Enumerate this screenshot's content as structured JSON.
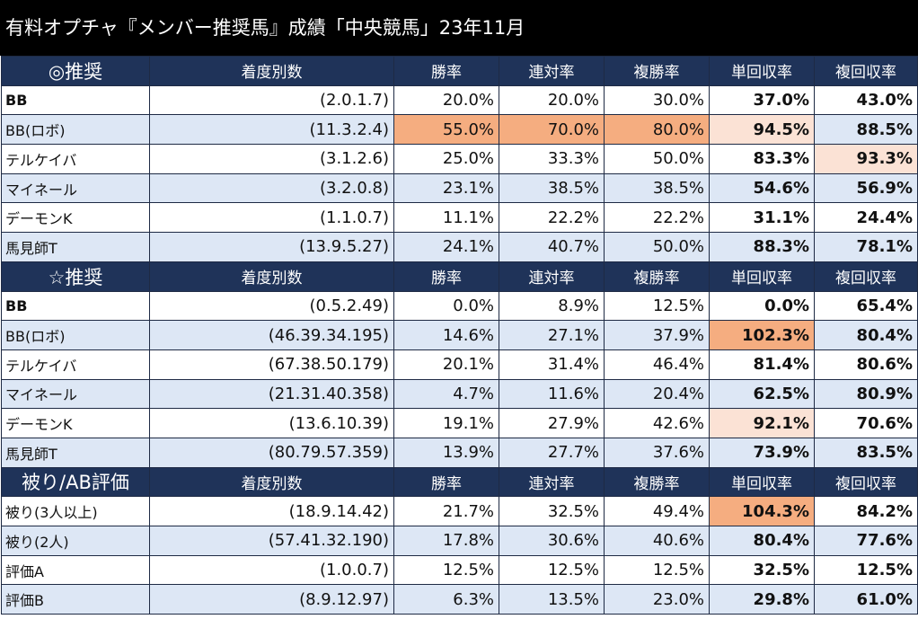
{
  "title": "有料オプチャ『メンバー推奨馬』成績「中央競馬」23年11月",
  "columns": [
    "着度別数",
    "勝率",
    "連対率",
    "複勝率",
    "単回収率",
    "複回収率"
  ],
  "sections": [
    {
      "name": "◎推奨",
      "rows": [
        {
          "label": "BB",
          "cells": [
            "(2.0.1.7)",
            "20.0%",
            "20.0%",
            "30.0%",
            "37.0%",
            "43.0%"
          ]
        },
        {
          "label": "BB(ロボ)",
          "cells": [
            "(11.3.2.4)",
            "55.0%",
            "70.0%",
            "80.0%",
            "94.5%",
            "88.5%"
          ]
        },
        {
          "label": "テルケイバ",
          "cells": [
            "(3.1.2.6)",
            "25.0%",
            "33.3%",
            "50.0%",
            "83.3%",
            "93.3%"
          ]
        },
        {
          "label": "マイネール",
          "cells": [
            "(3.2.0.8)",
            "23.1%",
            "38.5%",
            "38.5%",
            "54.6%",
            "56.9%"
          ]
        },
        {
          "label": "デーモンK",
          "cells": [
            "(1.1.0.7)",
            "11.1%",
            "22.2%",
            "22.2%",
            "31.1%",
            "24.4%"
          ]
        },
        {
          "label": "馬見師T",
          "cells": [
            "(13.9.5.27)",
            "24.1%",
            "40.7%",
            "50.0%",
            "88.3%",
            "78.1%"
          ]
        }
      ]
    },
    {
      "name": "☆推奨",
      "rows": [
        {
          "label": "BB",
          "cells": [
            "(0.5.2.49)",
            "0.0%",
            "8.9%",
            "12.5%",
            "0.0%",
            "65.4%"
          ]
        },
        {
          "label": "BB(ロボ)",
          "cells": [
            "(46.39.34.195)",
            "14.6%",
            "27.1%",
            "37.9%",
            "102.3%",
            "80.4%"
          ]
        },
        {
          "label": "テルケイバ",
          "cells": [
            "(67.38.50.179)",
            "20.1%",
            "31.4%",
            "46.4%",
            "81.4%",
            "80.6%"
          ]
        },
        {
          "label": "マイネール",
          "cells": [
            "(21.31.40.358)",
            "4.7%",
            "11.6%",
            "20.4%",
            "62.5%",
            "80.9%"
          ]
        },
        {
          "label": "デーモンK",
          "cells": [
            "(13.6.10.39)",
            "19.1%",
            "27.9%",
            "42.6%",
            "92.1%",
            "70.6%"
          ]
        },
        {
          "label": "馬見師T",
          "cells": [
            "(80.79.57.359)",
            "13.9%",
            "27.7%",
            "37.6%",
            "73.9%",
            "83.5%"
          ]
        }
      ]
    },
    {
      "name": "被り/AB評価",
      "rows": [
        {
          "label": "被り(3人以上)",
          "cells": [
            "(18.9.14.42)",
            "21.7%",
            "32.5%",
            "49.4%",
            "104.3%",
            "84.2%"
          ]
        },
        {
          "label": "被り(2人)",
          "cells": [
            "(57.41.32.190)",
            "17.8%",
            "30.6%",
            "40.6%",
            "80.4%",
            "77.6%"
          ]
        },
        {
          "label": "評価A",
          "cells": [
            "(1.0.0.7)",
            "12.5%",
            "12.5%",
            "12.5%",
            "32.5%",
            "12.5%"
          ]
        },
        {
          "label": "評価B",
          "cells": [
            "(8.9.12.97)",
            "6.3%",
            "13.5%",
            "23.0%",
            "29.8%",
            "61.0%"
          ]
        }
      ]
    }
  ]
}
